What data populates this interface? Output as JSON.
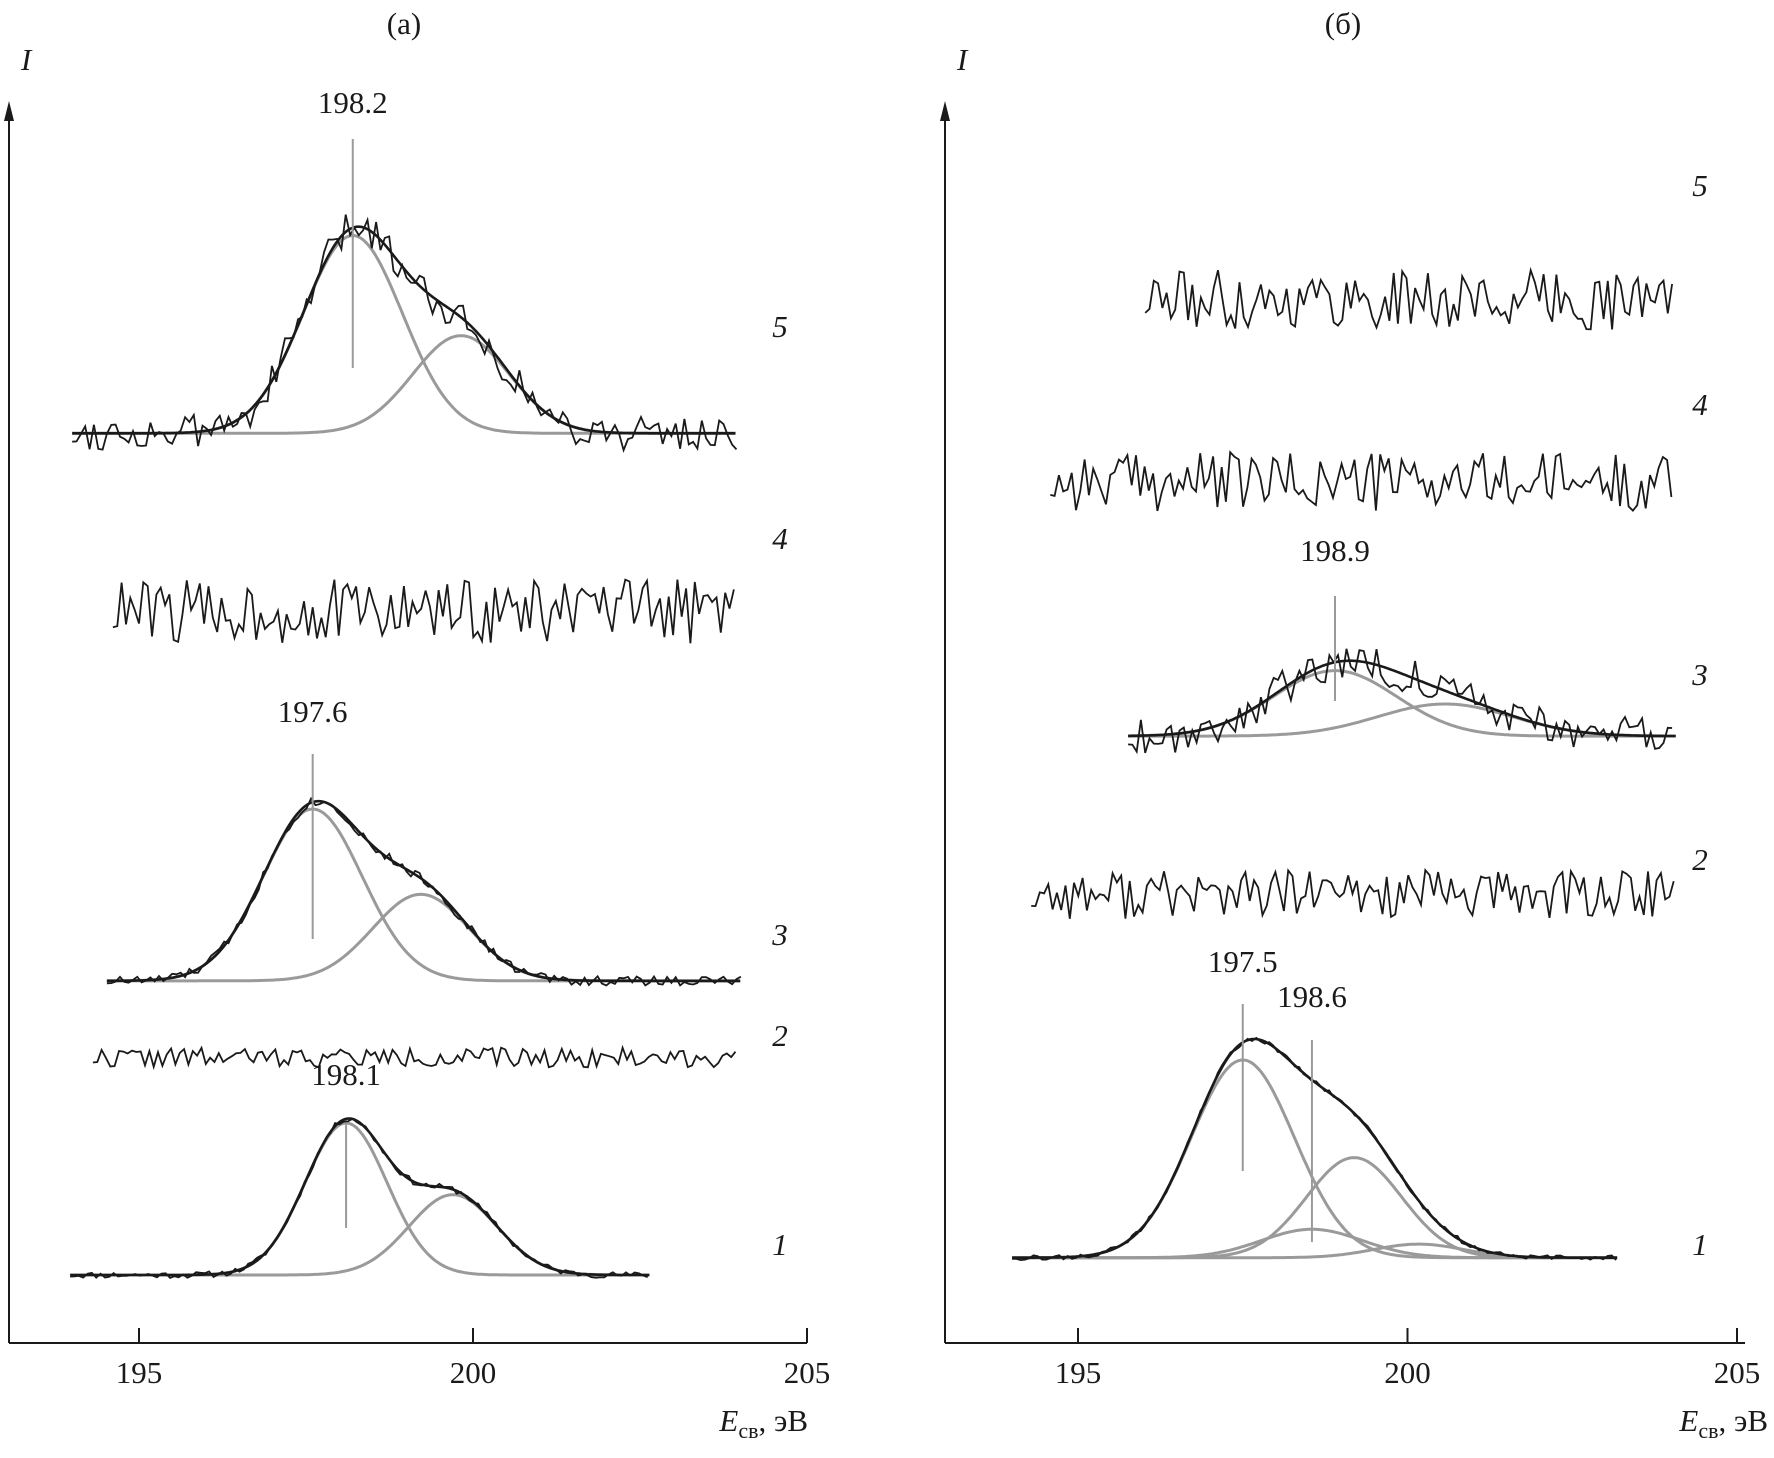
{
  "chart_data": [
    {
      "type": "line",
      "panel_label": "(а)",
      "ylabel": "I",
      "xlabel_main": "E",
      "xlabel_sub": "св",
      "xlabel_unit": ", эВ",
      "xlim": [
        193.0,
        205.0
      ],
      "ylim": [
        0,
        100
      ],
      "xticks": [
        195,
        200,
        205
      ],
      "xtick_labels": [
        "195",
        "200",
        "205"
      ],
      "grid": false,
      "spectra": [
        {
          "label": "1",
          "e_range": [
            193.97,
            202.65
          ],
          "baseline": 5.5,
          "noise": 0.25,
          "seed": 11,
          "components": [
            {
              "center": 198.1,
              "amp": 12.3,
              "fwhm": 1.45
            },
            {
              "center": 199.7,
              "amp": 6.5,
              "fwhm": 1.55
            }
          ],
          "peak_labels": [
            {
              "text": "198.1",
              "energy": 198.1
            }
          ]
        },
        {
          "label": "2",
          "e_range": [
            194.31,
            203.95
          ],
          "baseline": 23.1,
          "noise": 0.8,
          "seed": 22,
          "components": [],
          "peak_labels": []
        },
        {
          "label": "3",
          "e_range": [
            194.52,
            204.01
          ],
          "baseline": 29.3,
          "noise": 0.4,
          "seed": 33,
          "components": [
            {
              "center": 197.6,
              "amp": 13.9,
              "fwhm": 1.75
            },
            {
              "center": 199.22,
              "amp": 7.0,
              "fwhm": 1.7
            }
          ],
          "peak_labels": [
            {
              "text": "197.6",
              "energy": 197.6
            }
          ]
        },
        {
          "label": "4",
          "e_range": [
            194.61,
            203.95
          ],
          "baseline": 59.2,
          "noise": 2.6,
          "seed": 44,
          "components": [],
          "peak_labels": []
        },
        {
          "label": "5",
          "e_range": [
            194.0,
            203.95
          ],
          "baseline": 73.6,
          "noise": 1.4,
          "seed": 55,
          "components": [
            {
              "center": 198.2,
              "amp": 16.0,
              "fwhm": 1.75
            },
            {
              "center": 199.82,
              "amp": 7.9,
              "fwhm": 1.7
            }
          ],
          "peak_labels": [
            {
              "text": "198.2",
              "energy": 198.2
            }
          ]
        }
      ]
    },
    {
      "type": "line",
      "panel_label": "(б)",
      "ylabel": "I",
      "xlabel_main": "E",
      "xlabel_sub": "св",
      "xlabel_unit": ", эВ",
      "xlim": [
        193.0,
        205.0
      ],
      "ylim": [
        0,
        100
      ],
      "xticks": [
        195,
        200,
        205
      ],
      "xtick_labels": [
        "195",
        "200",
        "205"
      ],
      "grid": false,
      "spectra": [
        {
          "label": "1",
          "e_range": [
            194.0,
            203.18
          ],
          "baseline": 6.9,
          "noise": 0.2,
          "seed": 66,
          "components": [
            {
              "center": 197.5,
              "amp": 16.0,
              "fwhm": 1.85
            },
            {
              "center": 198.55,
              "amp": 2.3,
              "fwhm": 1.8
            },
            {
              "center": 199.19,
              "amp": 8.1,
              "fwhm": 1.7
            },
            {
              "center": 200.17,
              "amp": 1.1,
              "fwhm": 1.6
            }
          ],
          "peak_labels": [
            {
              "text": "197.5",
              "energy": 197.5
            },
            {
              "text": "198.6",
              "energy": 198.55
            }
          ]
        },
        {
          "label": "2",
          "e_range": [
            194.29,
            204.04
          ],
          "baseline": 36.3,
          "noise": 2.0,
          "seed": 77,
          "components": [],
          "peak_labels": []
        },
        {
          "label": "3",
          "e_range": [
            195.76,
            204.07
          ],
          "baseline": 49.1,
          "noise": 1.5,
          "seed": 88,
          "components": [
            {
              "center": 198.9,
              "amp": 5.3,
              "fwhm": 2.2
            },
            {
              "center": 200.57,
              "amp": 2.6,
              "fwhm": 2.4
            }
          ],
          "peak_labels": [
            {
              "text": "198.9",
              "energy": 198.9
            }
          ]
        },
        {
          "label": "4",
          "e_range": [
            194.58,
            204.04
          ],
          "baseline": 69.7,
          "noise": 2.4,
          "seed": 99,
          "components": [],
          "peak_labels": []
        },
        {
          "label": "5",
          "e_range": [
            196.02,
            204.07
          ],
          "baseline": 84.4,
          "noise": 2.4,
          "seed": 111,
          "components": [],
          "peak_labels": []
        }
      ]
    }
  ]
}
